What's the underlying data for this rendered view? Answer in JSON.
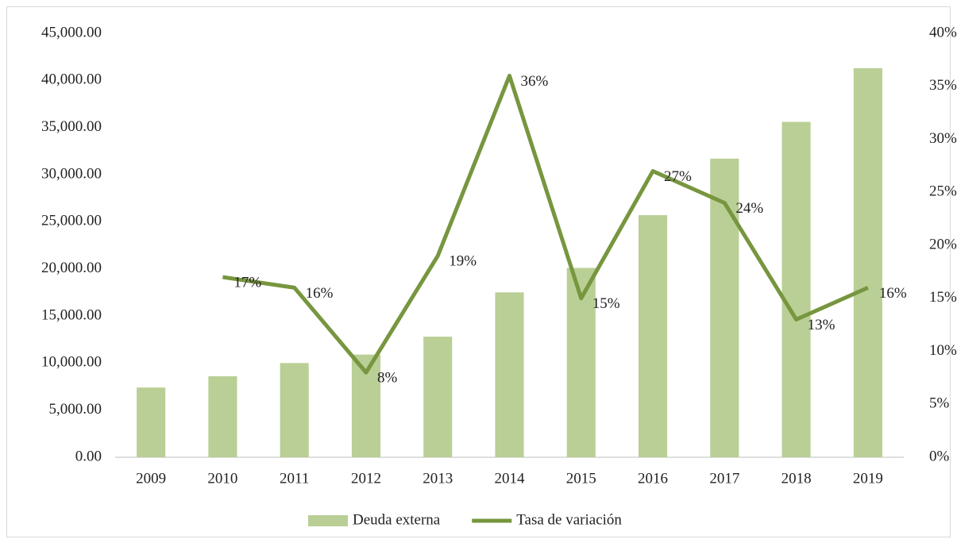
{
  "chart_data": {
    "type": "bar-line",
    "categories": [
      "2009",
      "2010",
      "2011",
      "2012",
      "2013",
      "2014",
      "2015",
      "2016",
      "2017",
      "2018",
      "2019"
    ],
    "series": [
      {
        "name": "Deuda externa",
        "type": "bar",
        "color": "#b9cf95",
        "values": [
          7400,
          8600,
          10000,
          10900,
          12800,
          17500,
          20100,
          25700,
          31700,
          35600,
          41300
        ]
      },
      {
        "name": "Tasa de variación",
        "type": "line",
        "axis": "y2",
        "color": "#77963f",
        "values": [
          null,
          17,
          16,
          8,
          19,
          36,
          15,
          27,
          24,
          13,
          16
        ],
        "value_labels": [
          null,
          "17%",
          "16%",
          "8%",
          "19%",
          "36%",
          "15%",
          "27%",
          "24%",
          "13%",
          "16%"
        ]
      }
    ],
    "ylim": [
      0,
      45000
    ],
    "yticks": [
      {
        "value": 0,
        "label": "0.00"
      },
      {
        "value": 5000,
        "label": "5,000.00"
      },
      {
        "value": 10000,
        "label": "10,000.00"
      },
      {
        "value": 15000,
        "label": "15,000.00"
      },
      {
        "value": 20000,
        "label": "20,000.00"
      },
      {
        "value": 25000,
        "label": "25,000.00"
      },
      {
        "value": 30000,
        "label": "30,000.00"
      },
      {
        "value": 35000,
        "label": "35,000.00"
      },
      {
        "value": 40000,
        "label": "40,000.00"
      },
      {
        "value": 45000,
        "label": "45,000.00"
      }
    ],
    "y2lim": [
      0,
      40
    ],
    "y2ticks": [
      {
        "value": 0,
        "label": "0%"
      },
      {
        "value": 5,
        "label": "5%"
      },
      {
        "value": 10,
        "label": "10%"
      },
      {
        "value": 15,
        "label": "15%"
      },
      {
        "value": 20,
        "label": "20%"
      },
      {
        "value": 25,
        "label": "25%"
      },
      {
        "value": 30,
        "label": "30%"
      },
      {
        "value": 35,
        "label": "35%"
      },
      {
        "value": 40,
        "label": "40%"
      }
    ],
    "legend": "bottom"
  }
}
